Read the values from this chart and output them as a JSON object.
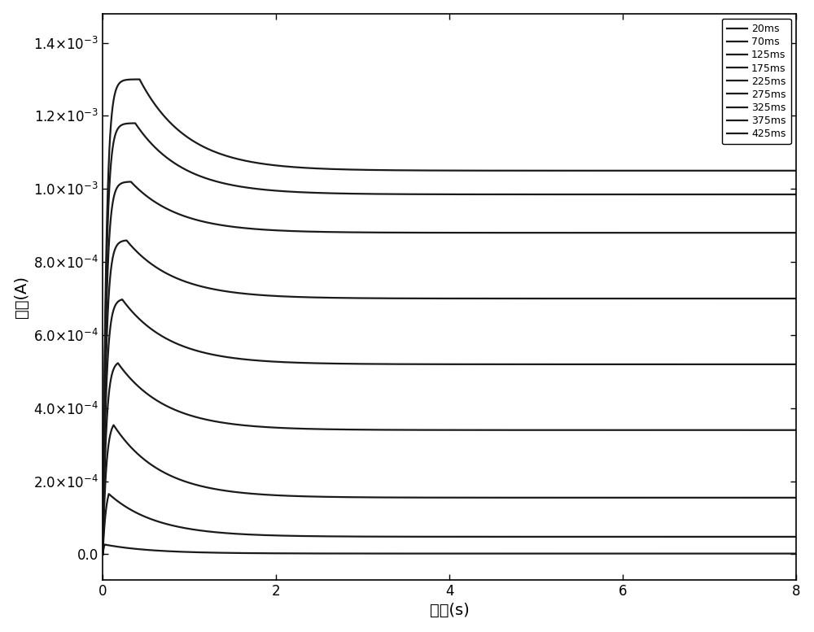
{
  "title": "",
  "xlabel": "时间(s)",
  "ylabel": "电流(A)",
  "xlim": [
    0,
    8
  ],
  "ylim": [
    -7e-05,
    0.00148
  ],
  "yticks": [
    0.0,
    0.0002,
    0.0004,
    0.0006,
    0.0008,
    0.001,
    0.0012,
    0.0014
  ],
  "xticks": [
    0,
    2,
    4,
    6,
    8
  ],
  "series": [
    {
      "label": "20ms",
      "peak_val": 6.8e-05,
      "steady": 2e-06,
      "tau_rise": 0.04,
      "tau_decay": 0.55,
      "t_on": 0.02
    },
    {
      "label": "70ms",
      "peak_val": 0.0002,
      "steady": 4.8e-05,
      "tau_rise": 0.04,
      "tau_decay": 0.55,
      "t_on": 0.07
    },
    {
      "label": "125ms",
      "peak_val": 0.00037,
      "steady": 0.000155,
      "tau_rise": 0.04,
      "tau_decay": 0.55,
      "t_on": 0.125
    },
    {
      "label": "175ms",
      "peak_val": 0.00053,
      "steady": 0.00034,
      "tau_rise": 0.04,
      "tau_decay": 0.55,
      "t_on": 0.175
    },
    {
      "label": "225ms",
      "peak_val": 0.0007,
      "steady": 0.00052,
      "tau_rise": 0.04,
      "tau_decay": 0.55,
      "t_on": 0.225
    },
    {
      "label": "275ms",
      "peak_val": 0.00086,
      "steady": 0.0007,
      "tau_rise": 0.04,
      "tau_decay": 0.55,
      "t_on": 0.275
    },
    {
      "label": "325ms",
      "peak_val": 0.00102,
      "steady": 0.00088,
      "tau_rise": 0.04,
      "tau_decay": 0.55,
      "t_on": 0.325
    },
    {
      "label": "375ms",
      "peak_val": 0.00118,
      "steady": 0.000985,
      "tau_rise": 0.04,
      "tau_decay": 0.55,
      "t_on": 0.375
    },
    {
      "label": "425ms",
      "peak_val": 0.0013,
      "steady": 0.00105,
      "tau_rise": 0.04,
      "tau_decay": 0.55,
      "t_on": 0.425
    }
  ],
  "line_color": "#1a1a1a",
  "linewidth": 1.6,
  "legend_fontsize": 9,
  "axis_fontsize": 14,
  "tick_fontsize": 12,
  "background_color": "#ffffff"
}
